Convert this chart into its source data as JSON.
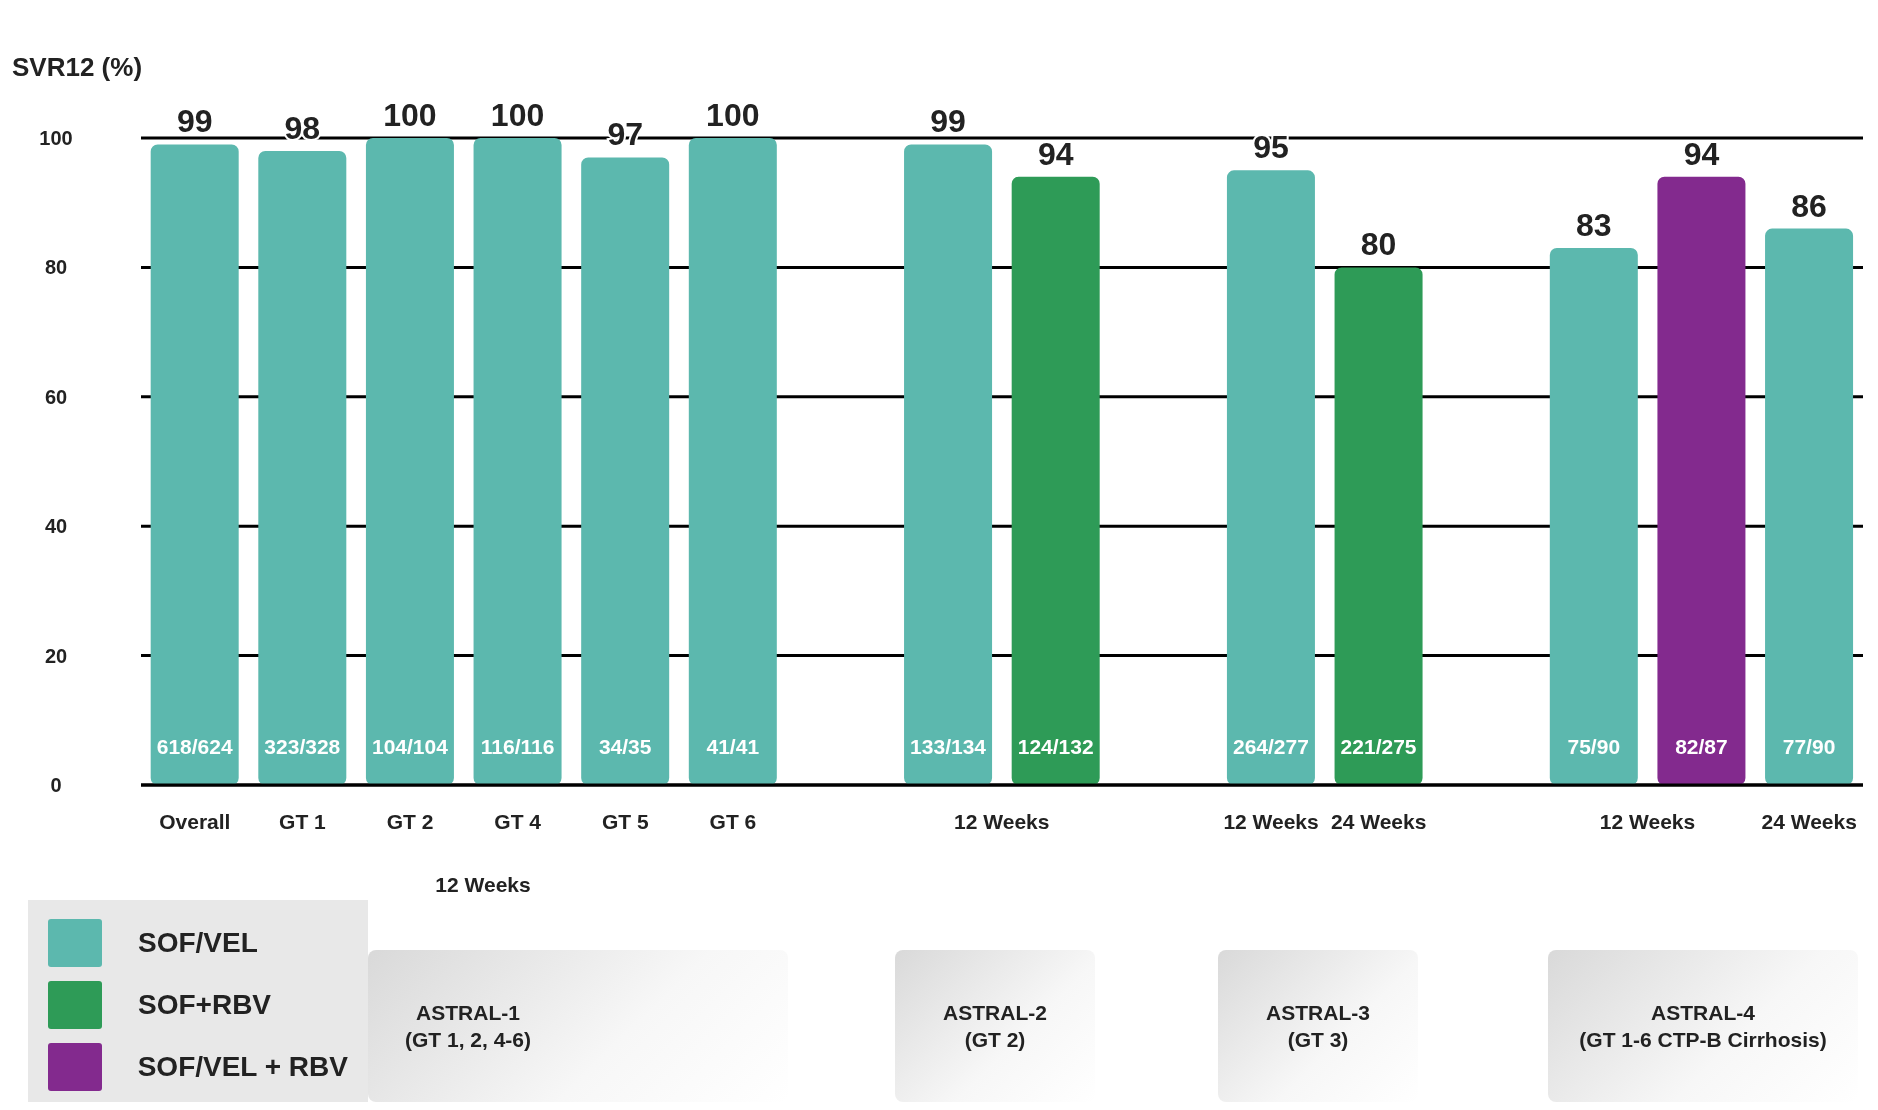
{
  "chart_data": {
    "type": "bar",
    "ylabel": "SVR12 (%)",
    "categories": [
      "Overall",
      "GT 1",
      "GT 2",
      "GT 4",
      "GT 5",
      "GT 6",
      null,
      "12 Weeks",
      null,
      null,
      "12 Weeks",
      "24 Weeks",
      null,
      "12 Weeks",
      null,
      "24 Weeks"
    ],
    "series": [
      {
        "name": "SOF/VEL",
        "color": "#5cb8ae",
        "values": [
          99,
          98,
          100,
          100,
          97,
          100,
          null,
          99,
          null,
          null,
          95,
          null,
          null,
          83,
          null,
          86
        ],
        "value_labels": [
          "618/624",
          "323/328",
          "104/104",
          "116/116",
          "34/35",
          "41/41",
          null,
          "133/134",
          null,
          null,
          "264/277",
          null,
          null,
          "75/90",
          null,
          "77/90"
        ]
      },
      {
        "name": "SOF+RBV",
        "color": "#2e9b57",
        "values": [
          null,
          null,
          null,
          null,
          null,
          null,
          null,
          null,
          94,
          null,
          null,
          80,
          null,
          null,
          null,
          null
        ],
        "value_labels": [
          null,
          null,
          null,
          null,
          null,
          null,
          null,
          null,
          "124/132",
          null,
          null,
          "221/275",
          null,
          null,
          null,
          null
        ]
      },
      {
        "name": "SOF/VEL + RBV",
        "color": "#832a8e",
        "values": [
          null,
          null,
          null,
          null,
          null,
          null,
          null,
          null,
          null,
          null,
          null,
          null,
          null,
          null,
          94,
          null
        ],
        "value_labels": [
          null,
          null,
          null,
          null,
          null,
          null,
          null,
          null,
          null,
          null,
          null,
          null,
          null,
          null,
          "82/87",
          null
        ]
      }
    ],
    "stacked": true,
    "totals": [
      "99",
      "98",
      "100",
      "100",
      "97",
      "100",
      null,
      "99",
      "94",
      null,
      "95",
      "80",
      null,
      "83",
      "94",
      "86"
    ],
    "ylim": [
      0,
      100
    ],
    "yticks": [
      0,
      20,
      40,
      60,
      80,
      100
    ],
    "grid": "y",
    "legend": "bottom left",
    "annotations": [
      "12 Weeks",
      "ASTRAL-1\n(GT 1, 2, 4-6)",
      "ASTRAL-2\n(GT  2)",
      "ASTRAL-3\n(GT 3)",
      "ASTRAL-4\n(GT 1-6 CTP-B Cirrhosis)"
    ]
  }
}
